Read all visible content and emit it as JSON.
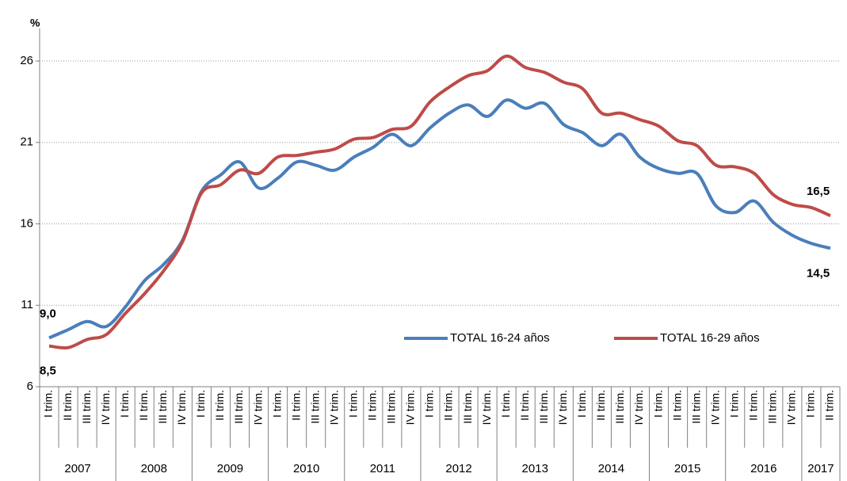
{
  "chart_data": {
    "type": "line",
    "y_label": "%",
    "categories": [
      "I trim.",
      "II trim.",
      "III trim.",
      "IV trim.",
      "I trim.",
      "II trim.",
      "III trim.",
      "IV trim.",
      "I trim.",
      "II trim.",
      "III trim.",
      "IV trim.",
      "I trim.",
      "II trim.",
      "III trim.",
      "IV trim.",
      "I trim.",
      "II trim.",
      "III trim.",
      "IV trim.",
      "I trim.",
      "II trim.",
      "III trim.",
      "IV trim.",
      "I trim.",
      "II trim.",
      "III trim.",
      "IV trim.",
      "I trim.",
      "II trim.",
      "III trim.",
      "IV trim.",
      "I trim.",
      "II trim.",
      "III trim.",
      "IV trim.",
      "I trim.",
      "II trim.",
      "III trim.",
      "IV trim.",
      "I trim.",
      "II trim."
    ],
    "year_groups": [
      "2007",
      "2008",
      "2009",
      "2010",
      "2011",
      "2012",
      "2013",
      "2014",
      "2015",
      "2016",
      "2017"
    ],
    "series": [
      {
        "name": "TOTAL 16-24 años",
        "color": "#4a7ebb",
        "values": [
          9.0,
          9.5,
          10.0,
          9.7,
          10.9,
          12.5,
          13.5,
          15.0,
          18.0,
          19.0,
          19.8,
          18.2,
          18.8,
          19.8,
          19.6,
          19.3,
          20.1,
          20.7,
          21.5,
          20.8,
          21.9,
          22.8,
          23.3,
          22.6,
          23.6,
          23.1,
          23.4,
          22.1,
          21.6,
          20.8,
          21.5,
          20.1,
          19.4,
          19.1,
          19.1,
          17.1,
          16.7,
          17.4,
          16.1,
          15.3,
          14.8,
          14.5
        ],
        "value_labels": [
          "9,0",
          null,
          null,
          null,
          null,
          null,
          null,
          null,
          null,
          null,
          null,
          null,
          null,
          null,
          null,
          null,
          null,
          null,
          null,
          null,
          null,
          null,
          null,
          null,
          null,
          null,
          null,
          null,
          null,
          null,
          null,
          null,
          null,
          null,
          null,
          null,
          null,
          null,
          null,
          null,
          null,
          "14,5"
        ]
      },
      {
        "name": "TOTAL 16-29 años",
        "color": "#be4b48",
        "values": [
          8.5,
          8.4,
          8.9,
          9.2,
          10.5,
          11.7,
          13.1,
          14.9,
          17.9,
          18.4,
          19.3,
          19.1,
          20.1,
          20.2,
          20.4,
          20.6,
          21.2,
          21.3,
          21.8,
          22.0,
          23.5,
          24.4,
          25.1,
          25.4,
          26.3,
          25.6,
          25.3,
          24.7,
          24.3,
          22.8,
          22.8,
          22.4,
          22.0,
          21.1,
          20.8,
          19.6,
          19.5,
          19.1,
          17.8,
          17.2,
          17.0,
          16.5
        ],
        "value_labels": [
          "8,5",
          null,
          null,
          null,
          null,
          null,
          null,
          null,
          null,
          null,
          null,
          null,
          null,
          null,
          null,
          null,
          null,
          null,
          null,
          null,
          null,
          null,
          null,
          null,
          null,
          null,
          null,
          null,
          null,
          null,
          null,
          null,
          null,
          null,
          null,
          null,
          null,
          null,
          null,
          null,
          null,
          "16,5"
        ]
      }
    ],
    "ylim": [
      6,
      28
    ],
    "yticks": [
      6,
      11,
      16,
      21,
      26
    ],
    "grid": true,
    "legend": "lower-right"
  }
}
